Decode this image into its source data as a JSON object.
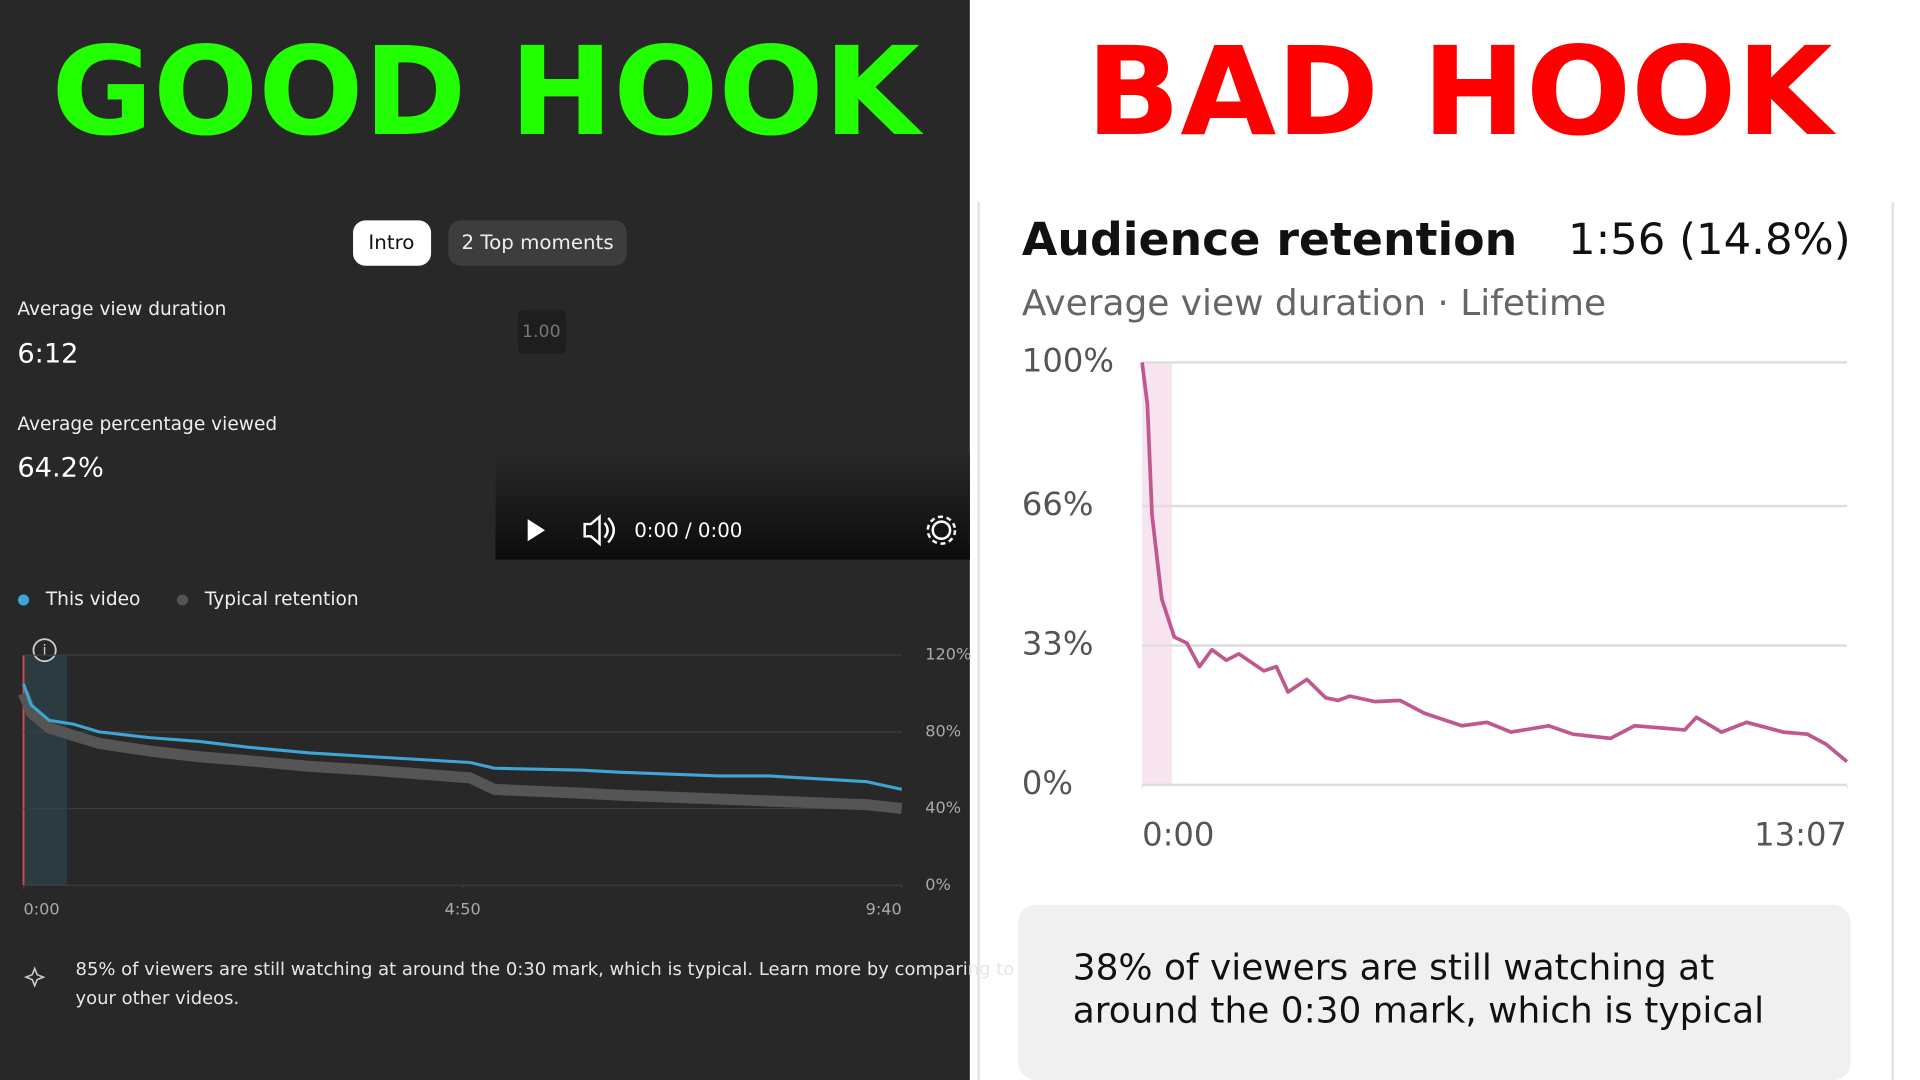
{
  "header": {
    "left": "GOOD HOOK",
    "right": "BAD HOOK"
  },
  "left_panel": {
    "tabs": [
      "Intro",
      "2 Top moments"
    ],
    "metrics": [
      {
        "label": "Average view duration",
        "value": "6:12"
      },
      {
        "label": "Average percentage viewed",
        "value": "64.2%"
      }
    ],
    "speed": "1.00",
    "player_time": "0:00 / 0:00",
    "insight": [
      "85% of viewers are still watching at around the 0:30 mark, which is typical. Learn more by comparing to",
      "your other videos."
    ]
  },
  "right_panel": {
    "title": "Audience retention",
    "headline_value": "1:56 (14.8%)",
    "subtitle": "Average view duration · Lifetime",
    "insight": [
      "38% of viewers are still watching at",
      "around the 0:30 mark, which is typical"
    ]
  },
  "chart_data": [
    {
      "type": "line",
      "x": [
        0,
        5,
        17,
        33,
        50,
        83,
        116,
        148,
        189,
        230,
        295,
        311,
        369,
        393,
        459,
        492,
        557,
        580
      ],
      "series": [
        {
          "name": "This video",
          "color": "#3ea6d6",
          "values": [
            105,
            94,
            86,
            84,
            80,
            77,
            75,
            72,
            69,
            67,
            64,
            61,
            60,
            59,
            57,
            57,
            54,
            50
          ]
        },
        {
          "name": "Typical retention",
          "color": "#555555",
          "values": [
            100,
            90,
            82,
            78,
            74,
            70,
            67,
            65,
            62,
            60,
            56,
            50,
            48,
            47,
            45,
            44,
            42,
            40
          ]
        }
      ],
      "xlim": [
        0,
        580
      ],
      "xticks": [
        {
          "value": 0,
          "label": "0:00"
        },
        {
          "value": 290,
          "label": "4:50"
        },
        {
          "value": 580,
          "label": "9:40"
        }
      ],
      "ylim": [
        0,
        120
      ],
      "yticks": [
        {
          "value": 0,
          "label": "0%"
        },
        {
          "value": 40,
          "label": "40%"
        },
        {
          "value": 80,
          "label": "80%"
        },
        {
          "value": 120,
          "label": "120%"
        }
      ],
      "grid": true
    },
    {
      "type": "line",
      "x": [
        0,
        6,
        11,
        22,
        36,
        50,
        64,
        78,
        94,
        108,
        136,
        150,
        163,
        184,
        205,
        219,
        232,
        260,
        288,
        315,
        357,
        385,
        412,
        454,
        481,
        523,
        550,
        606,
        619,
        647,
        675,
        716,
        743,
        764,
        787
      ],
      "values": [
        100,
        90,
        64,
        44,
        35,
        33.6,
        28,
        32,
        29.5,
        31,
        27,
        28,
        22,
        25,
        20.6,
        20,
        21,
        19.7,
        20,
        17,
        14,
        14.8,
        12.5,
        14,
        12,
        11,
        14,
        13,
        16,
        12.5,
        14.8,
        12.5,
        12,
        9.6,
        5.5
      ],
      "color": "#c0578f",
      "xlim": [
        0,
        787
      ],
      "xticks": [
        {
          "value": 0,
          "label": "0:00"
        },
        {
          "value": 787,
          "label": "13:07"
        }
      ],
      "ylim": [
        0,
        100
      ],
      "yticks": [
        {
          "value": 0,
          "label": "0%"
        },
        {
          "value": 33,
          "label": "33%"
        },
        {
          "value": 66,
          "label": "66%"
        },
        {
          "value": 100,
          "label": "100%"
        }
      ],
      "grid": true
    }
  ]
}
